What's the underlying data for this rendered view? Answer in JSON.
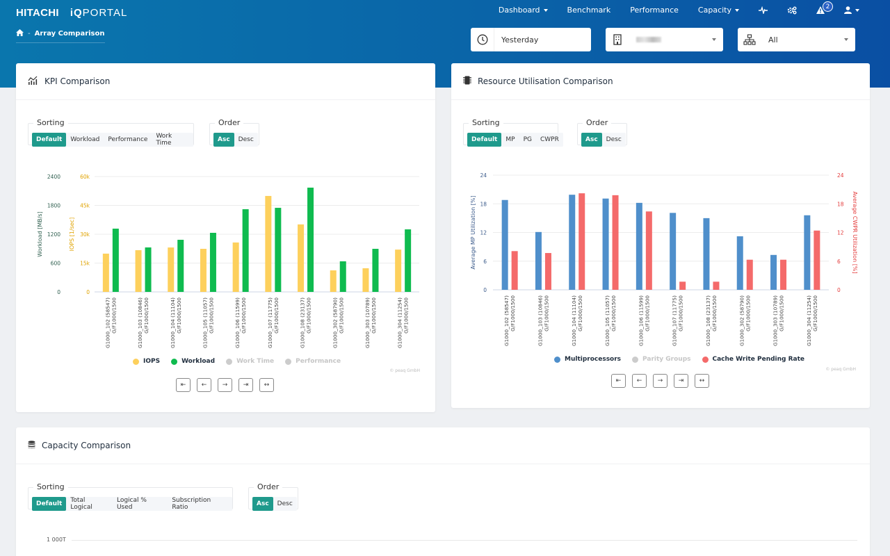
{
  "header": {
    "brand_primary": "HITACHI",
    "brand_secondary_bold": "iQ",
    "brand_secondary": "PORTAL",
    "breadcrumb": {
      "separator": "-",
      "current": "Array Comparison"
    },
    "nav": [
      {
        "label": "Dashboard",
        "dropdown": true
      },
      {
        "label": "Benchmark",
        "dropdown": false
      },
      {
        "label": "Performance",
        "dropdown": false
      },
      {
        "label": "Capacity",
        "dropdown": true
      }
    ],
    "alert_count": "2"
  },
  "filters": {
    "time": "Yesterday",
    "site": "",
    "group": "All"
  },
  "kpi": {
    "title": "KPI Comparison",
    "sorting_label": "Sorting",
    "sorting_options": [
      "Default",
      "Workload",
      "Performance",
      "Work Time"
    ],
    "sorting_active": 0,
    "order_label": "Order",
    "order_options": [
      "Asc",
      "Desc"
    ],
    "order_active": 0,
    "legend": [
      {
        "label": "IOPS",
        "color": "#fdd05c",
        "enabled": true
      },
      {
        "label": "Workload",
        "color": "#0fbb4f",
        "enabled": true
      },
      {
        "label": "Work Time",
        "color": "#cccccc",
        "enabled": false
      },
      {
        "label": "Performance",
        "color": "#cccccc",
        "enabled": false
      }
    ],
    "copyright": "© peaq GmbH"
  },
  "resource": {
    "title": "Resource Utilisation Comparison",
    "sorting_label": "Sorting",
    "sorting_options": [
      "Default",
      "MP",
      "PG",
      "CWPR"
    ],
    "sorting_active": 0,
    "order_label": "Order",
    "order_options": [
      "Asc",
      "Desc"
    ],
    "order_active": 0,
    "legend": [
      {
        "label": "Multiprocessors",
        "color": "#4f8fcb",
        "enabled": true
      },
      {
        "label": "Parity Groups",
        "color": "#cccccc",
        "enabled": false
      },
      {
        "label": "Cache Write Pending Rate",
        "color": "#f46a6a",
        "enabled": true
      }
    ],
    "copyright": "© peaq GmbH"
  },
  "capacity": {
    "title": "Capacity Comparison",
    "sorting_label": "Sorting",
    "sorting_options": [
      "Default",
      "Total Logical",
      "Logical % Used",
      "Subscription Ratio"
    ],
    "sorting_active": 0,
    "order_label": "Order",
    "order_options": [
      "Asc",
      "Desc"
    ],
    "order_active": 0,
    "y_top_label": "1 000T"
  },
  "pager": [
    "⇤",
    "←",
    "→",
    "⇥",
    "↔"
  ],
  "chart_data": [
    {
      "type": "bar",
      "title": "KPI Comparison",
      "categories": [
        [
          "G1000_102 (58547)",
          "G/F1000/1500"
        ],
        [
          "G1000_103 (10846)",
          "G/F1000/1500"
        ],
        [
          "G1000_104 (11104)",
          "G/F1000/1500"
        ],
        [
          "G1000_105 (11057)",
          "G/F1000/1500"
        ],
        [
          "G1000_106 (11599)",
          "G/F1000/1500"
        ],
        [
          "G1000_107 (11775)",
          "G/F1000/1500"
        ],
        [
          "G1000_108 (23137)",
          "G/F1000/1500"
        ],
        [
          "G1000_302 (58790)",
          "G/F1000/1500"
        ],
        [
          "G1000_303 (10789)",
          "G/F1000/1500"
        ],
        [
          "G1000_304 (11254)",
          "G/F1000/1500"
        ]
      ],
      "series": [
        {
          "name": "IOPS",
          "axis": "right-inner",
          "color": "#fdd05c",
          "values": [
            19900,
            21700,
            23100,
            22400,
            25700,
            49900,
            35100,
            11200,
            12300,
            22000
          ]
        },
        {
          "name": "Workload",
          "axis": "left",
          "color": "#0fbb4f",
          "values": [
            1316,
            925,
            1084,
            1229,
            1720,
            1749,
            2169,
            636,
            896,
            1301
          ]
        }
      ],
      "axes": {
        "workload": {
          "label": "Workload [MB/s]",
          "ticks": [
            "0",
            "600",
            "1200",
            "1800",
            "2400"
          ],
          "range": [
            0,
            2400
          ],
          "color": "#2f5f4f"
        },
        "iops": {
          "label": "IOPS [1/sec]",
          "ticks": [
            "0",
            "15k",
            "30k",
            "45k",
            "60k"
          ],
          "range": [
            0,
            60000
          ],
          "color": "#e0a300"
        }
      },
      "grid": true,
      "legend_position": "bottom"
    },
    {
      "type": "bar",
      "title": "Resource Utilisation Comparison",
      "categories": [
        [
          "G1000_102 (58547)",
          "G/F1000/1500"
        ],
        [
          "G1000_103 (10846)",
          "G/F1000/1500"
        ],
        [
          "G1000_104 (11104)",
          "G/F1000/1500"
        ],
        [
          "G1000_105 (11057)",
          "G/F1000/1500"
        ],
        [
          "G1000_106 (11599)",
          "G/F1000/1500"
        ],
        [
          "G1000_107 (11775)",
          "G/F1000/1500"
        ],
        [
          "G1000_108 (23137)",
          "G/F1000/1500"
        ],
        [
          "G1000_302 (58790)",
          "G/F1000/1500"
        ],
        [
          "G1000_303 (10789)",
          "G/F1000/1500"
        ],
        [
          "G1000_304 (11254)",
          "G/F1000/1500"
        ]
      ],
      "series": [
        {
          "name": "Multiprocessors",
          "axis": "left",
          "color": "#4f8fcb",
          "values": [
            18.8,
            12.1,
            19.9,
            19.1,
            18.2,
            16.1,
            15.0,
            11.2,
            7.3,
            15.6
          ]
        },
        {
          "name": "Cache Write Pending Rate",
          "axis": "right",
          "color": "#f46a6a",
          "values": [
            8.1,
            7.7,
            20.2,
            19.8,
            16.4,
            1.7,
            1.7,
            6.3,
            6.3,
            12.4
          ]
        }
      ],
      "axes": {
        "mp": {
          "label": "Average MP Utilization [%]",
          "ticks": [
            "0",
            "6",
            "12",
            "18",
            "24"
          ],
          "range": [
            0,
            24
          ],
          "color": "#3a5a8a"
        },
        "cwpr": {
          "label": "Average CWPR Utilization [%]",
          "ticks": [
            "0",
            "6",
            "12",
            "18",
            "24"
          ],
          "range": [
            0,
            24
          ],
          "color": "#e33b3b"
        }
      },
      "grid": true,
      "legend_position": "bottom"
    }
  ]
}
